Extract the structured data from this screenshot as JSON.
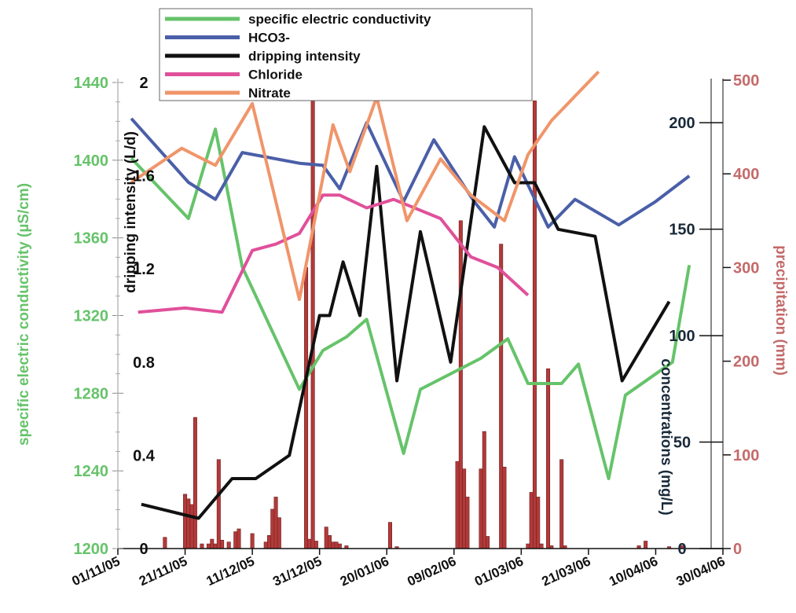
{
  "chart_data": {
    "type": "line",
    "legend_placement": "top-center",
    "legend": [
      {
        "label": "specific electric conductivity",
        "color": "#66c36a"
      },
      {
        "label": "HCO3-",
        "color": "#4a5fa8"
      },
      {
        "label": "dripping intensity",
        "color": "#111111"
      },
      {
        "label": "Chloride",
        "color": "#e0509a"
      },
      {
        "label": "Nitrate",
        "color": "#f0956a"
      }
    ],
    "x_axis": {
      "type": "date",
      "range": [
        "2005-11-01",
        "2006-04-30"
      ],
      "tick_labels": [
        "01/11/05",
        "21/11/05",
        "11/12/05",
        "31/12/05",
        "20/01/06",
        "09/02/06",
        "01/03/06",
        "21/03/06",
        "10/04/06",
        "30/04/06"
      ]
    },
    "axes": {
      "conductivity": {
        "label": "specific electric conductivity (µS/cm)",
        "range": [
          1200,
          1440
        ],
        "ticks": [
          "1200",
          "1240",
          "1280",
          "1320",
          "1360",
          "1400",
          "1440"
        ],
        "color": "#66c36a"
      },
      "dripping": {
        "label": "dripping intensity (L/d)",
        "range": [
          0,
          2
        ],
        "ticks": [
          "0",
          "0.4",
          "0.8",
          "1.2",
          "1.6",
          "2"
        ],
        "color": "#111111"
      },
      "concentrations": {
        "label": "concentrations (mg/L)",
        "range": [
          0,
          220
        ],
        "ticks": [
          "0",
          "50",
          "100",
          "150",
          "200"
        ],
        "color": "#1a2a3a"
      },
      "precipitation": {
        "label": "precipitation (mm)",
        "range": [
          0,
          500
        ],
        "ticks": [
          "0",
          "100",
          "200",
          "300",
          "400",
          "500"
        ],
        "color": "#c46a6a"
      }
    },
    "series": [
      {
        "name": "specific electric conductivity",
        "axis": "conductivity",
        "color": "#66c36a",
        "points": [
          [
            "2005-11-05",
            1401
          ],
          [
            "2005-11-22",
            1370
          ],
          [
            "2005-11-30",
            1416
          ],
          [
            "2005-12-08",
            1345
          ],
          [
            "2005-12-25",
            1282
          ],
          [
            "2006-01-01",
            1302
          ],
          [
            "2006-01-08",
            1309
          ],
          [
            "2006-01-14",
            1318
          ],
          [
            "2006-01-25",
            1249
          ],
          [
            "2006-01-30",
            1282
          ],
          [
            "2006-02-17",
            1298
          ],
          [
            "2006-02-25",
            1308
          ],
          [
            "2006-03-03",
            1285
          ],
          [
            "2006-03-13",
            1285
          ],
          [
            "2006-03-18",
            1295
          ],
          [
            "2006-03-27",
            1236
          ],
          [
            "2006-04-01",
            1279
          ],
          [
            "2006-04-15",
            1296
          ],
          [
            "2006-04-20",
            1346
          ]
        ]
      },
      {
        "name": "HCO3-",
        "axis": "concentrations",
        "color": "#4a5fa8",
        "points": [
          [
            "2005-11-05",
            202
          ],
          [
            "2005-11-22",
            172
          ],
          [
            "2005-11-30",
            164
          ],
          [
            "2005-12-08",
            186
          ],
          [
            "2005-12-25",
            181
          ],
          [
            "2006-01-01",
            180
          ],
          [
            "2006-01-06",
            169
          ],
          [
            "2006-01-14",
            200
          ],
          [
            "2006-01-25",
            163
          ],
          [
            "2006-02-03",
            192
          ],
          [
            "2006-02-15",
            163
          ],
          [
            "2006-02-21",
            151
          ],
          [
            "2006-02-27",
            184
          ],
          [
            "2006-03-09",
            151
          ],
          [
            "2006-03-17",
            164
          ],
          [
            "2006-03-30",
            152
          ],
          [
            "2006-04-10",
            163
          ],
          [
            "2006-04-20",
            175
          ]
        ]
      },
      {
        "name": "dripping intensity",
        "axis": "dripping",
        "color": "#111111",
        "points": [
          [
            "2005-11-08",
            0.19
          ],
          [
            "2005-11-25",
            0.13
          ],
          [
            "2005-12-05",
            0.3
          ],
          [
            "2005-12-12",
            0.3
          ],
          [
            "2005-12-22",
            0.4
          ],
          [
            "2005-12-31",
            1.0
          ],
          [
            "2006-01-03",
            1.0
          ],
          [
            "2006-01-07",
            1.23
          ],
          [
            "2006-01-12",
            1.0
          ],
          [
            "2006-01-17",
            1.64
          ],
          [
            "2006-01-23",
            0.72
          ],
          [
            "2006-01-30",
            1.36
          ],
          [
            "2006-02-08",
            0.8
          ],
          [
            "2006-02-18",
            1.81
          ],
          [
            "2006-02-27",
            1.57
          ],
          [
            "2006-03-05",
            1.57
          ],
          [
            "2006-03-12",
            1.37
          ],
          [
            "2006-03-23",
            1.34
          ],
          [
            "2006-03-31",
            0.72
          ],
          [
            "2006-04-14",
            1.06
          ]
        ]
      },
      {
        "name": "Chloride",
        "axis": "concentrations",
        "color": "#e0509a",
        "points": [
          [
            "2005-11-07",
            111
          ],
          [
            "2005-11-21",
            113
          ],
          [
            "2005-12-02",
            111
          ],
          [
            "2005-12-11",
            140
          ],
          [
            "2005-12-18",
            143
          ],
          [
            "2005-12-25",
            148
          ],
          [
            "2006-01-01",
            166
          ],
          [
            "2006-01-06",
            166
          ],
          [
            "2006-01-14",
            160
          ],
          [
            "2006-01-22",
            164
          ],
          [
            "2006-02-05",
            155
          ],
          [
            "2006-02-14",
            137
          ],
          [
            "2006-02-22",
            132
          ],
          [
            "2006-03-03",
            119
          ]
        ]
      },
      {
        "name": "Nitrate",
        "axis": "concentrations",
        "color": "#f0956a",
        "points": [
          [
            "2005-11-05",
            172
          ],
          [
            "2005-11-20",
            188
          ],
          [
            "2005-11-30",
            180
          ],
          [
            "2005-12-11",
            209
          ],
          [
            "2005-12-25",
            117
          ],
          [
            "2006-01-04",
            199
          ],
          [
            "2006-01-09",
            177
          ],
          [
            "2006-01-17",
            212
          ],
          [
            "2006-01-26",
            154
          ],
          [
            "2006-02-05",
            183
          ],
          [
            "2006-02-14",
            166
          ],
          [
            "2006-02-24",
            154
          ],
          [
            "2006-03-03",
            185
          ],
          [
            "2006-03-10",
            201
          ],
          [
            "2006-03-24",
            224
          ]
        ]
      }
    ],
    "precipitation_bars": [
      [
        "2005-11-15",
        12
      ],
      [
        "2005-11-21",
        58
      ],
      [
        "2005-11-22",
        53
      ],
      [
        "2005-11-23",
        47
      ],
      [
        "2005-11-24",
        140
      ],
      [
        "2005-11-26",
        5
      ],
      [
        "2005-11-28",
        5
      ],
      [
        "2005-11-29",
        10
      ],
      [
        "2005-11-30",
        5
      ],
      [
        "2005-12-01",
        95
      ],
      [
        "2005-12-02",
        9
      ],
      [
        "2005-12-04",
        7
      ],
      [
        "2005-12-06",
        18
      ],
      [
        "2005-12-07",
        21
      ],
      [
        "2005-12-11",
        16
      ],
      [
        "2005-12-15",
        7
      ],
      [
        "2005-12-16",
        14
      ],
      [
        "2005-12-17",
        42
      ],
      [
        "2005-12-18",
        55
      ],
      [
        "2005-12-19",
        33
      ],
      [
        "2005-12-27",
        300
      ],
      [
        "2005-12-28",
        10
      ],
      [
        "2005-12-29",
        480
      ],
      [
        "2005-12-30",
        8
      ],
      [
        "2006-01-02",
        23
      ],
      [
        "2006-01-03",
        14
      ],
      [
        "2006-01-04",
        7
      ],
      [
        "2006-01-05",
        7
      ],
      [
        "2006-01-06",
        5
      ],
      [
        "2006-01-08",
        3
      ],
      [
        "2006-01-21",
        28
      ],
      [
        "2006-01-23",
        2
      ],
      [
        "2006-02-10",
        93
      ],
      [
        "2006-02-11",
        350
      ],
      [
        "2006-02-12",
        85
      ],
      [
        "2006-02-13",
        55
      ],
      [
        "2006-02-17",
        85
      ],
      [
        "2006-02-18",
        125
      ],
      [
        "2006-02-19",
        13
      ],
      [
        "2006-02-23",
        325
      ],
      [
        "2006-02-24",
        87
      ],
      [
        "2006-03-03",
        5
      ],
      [
        "2006-03-04",
        60
      ],
      [
        "2006-03-05",
        478
      ],
      [
        "2006-03-06",
        55
      ],
      [
        "2006-03-07",
        5
      ],
      [
        "2006-03-09",
        192
      ],
      [
        "2006-03-10",
        3
      ],
      [
        "2006-03-13",
        95
      ],
      [
        "2006-03-14",
        3
      ],
      [
        "2006-04-05",
        3
      ],
      [
        "2006-04-07",
        8
      ],
      [
        "2006-04-14",
        2
      ],
      [
        "2006-04-18",
        3
      ]
    ]
  }
}
